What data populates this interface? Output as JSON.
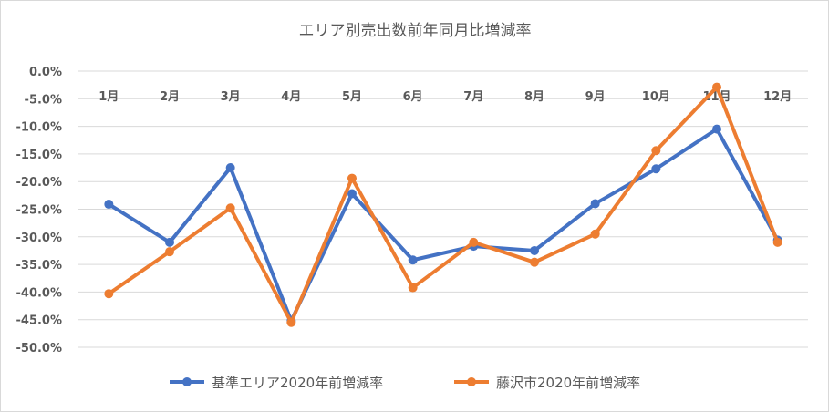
{
  "chart_data": {
    "type": "line",
    "title": "エリア別売出数前年同月比増減率",
    "categories": [
      "1月",
      "2月",
      "3月",
      "4月",
      "5月",
      "6月",
      "7月",
      "8月",
      "9月",
      "10月",
      "11月",
      "12月"
    ],
    "ylim": [
      -50,
      0
    ],
    "yticks": [
      0,
      -5,
      -10,
      -15,
      -20,
      -25,
      -30,
      -35,
      -40,
      -45,
      -50
    ],
    "ytick_labels": [
      "0.0%",
      "-5.0%",
      "-10.0%",
      "-15.0%",
      "-20.0%",
      "-25.0%",
      "-30.0%",
      "-35.0%",
      "-40.0%",
      "-45.0%",
      "-50.0%"
    ],
    "grid": true,
    "legend_position": "bottom",
    "series": [
      {
        "name": "基準エリア2020年前増減率",
        "color": "#4472c4",
        "values": [
          -24.1,
          -31.0,
          -17.5,
          -45.2,
          -22.2,
          -34.2,
          -31.7,
          -32.5,
          -24.0,
          -17.7,
          -10.5,
          -30.6
        ]
      },
      {
        "name": "藤沢市2020年前増減率",
        "color": "#ed7d31",
        "values": [
          -40.3,
          -32.7,
          -24.8,
          -45.5,
          -19.4,
          -39.2,
          -31.0,
          -34.6,
          -29.5,
          -14.4,
          -2.9,
          -31.0
        ]
      }
    ]
  }
}
